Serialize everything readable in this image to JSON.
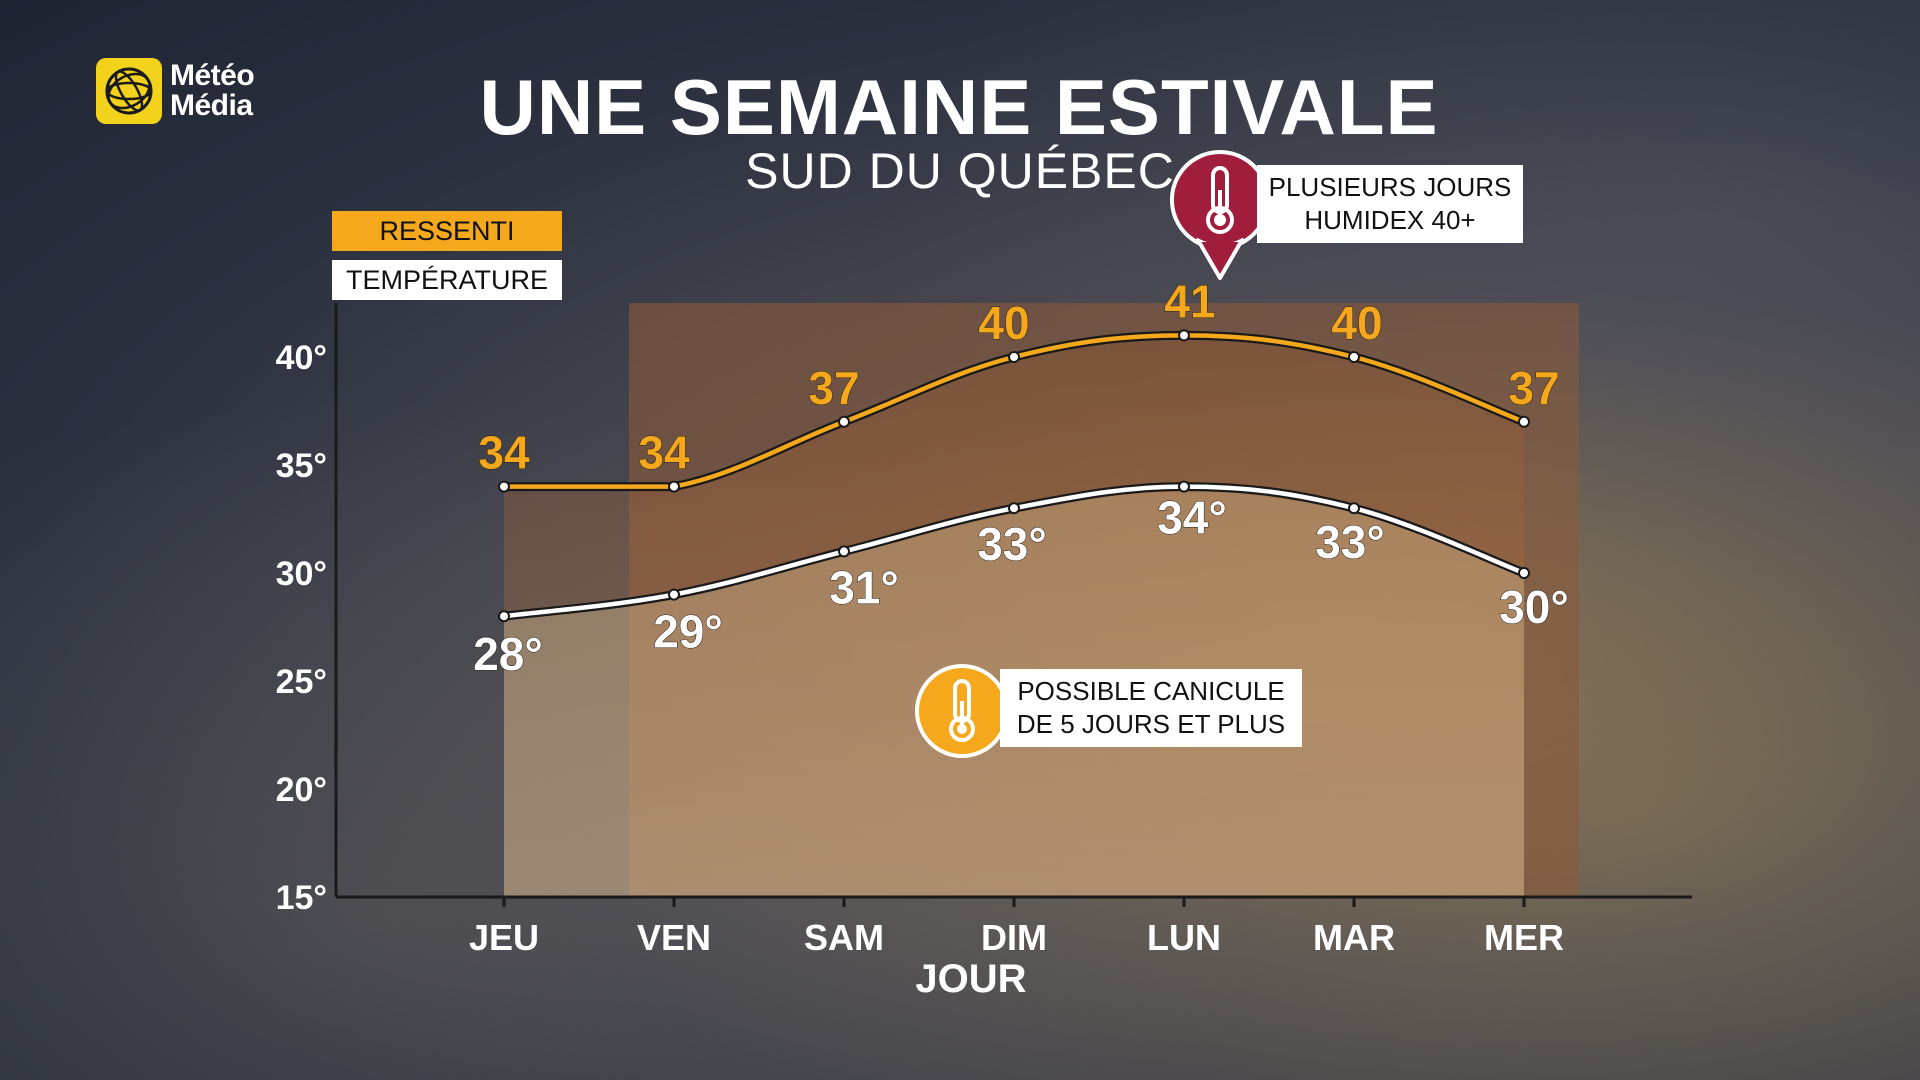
{
  "brand": {
    "line1": "Météo",
    "line2": "Média",
    "icon": "globe-icon"
  },
  "title": "UNE SEMAINE ESTIVALE",
  "subtitle": "SUD DU QUÉBEC",
  "legend": {
    "felt": "RESSENTI",
    "temperature": "TEMPÉRATURE"
  },
  "callouts": {
    "humidex": {
      "line1": "PLUSIEURS JOURS",
      "line2": "HUMIDEX 40+",
      "icon": "thermometer-icon"
    },
    "heatwave": {
      "line1": "POSSIBLE CANICULE",
      "line2": "DE 5 JOURS ET PLUS",
      "icon": "thermometer-icon"
    }
  },
  "colors": {
    "felt": "#f5a81c",
    "temperature": "#ffffff",
    "humidex_pin": "#a01d3c",
    "heat_badge": "#f5a81c"
  },
  "chart_data": {
    "type": "line",
    "title": "UNE SEMAINE ESTIVALE",
    "subtitle": "SUD DU QUÉBEC",
    "xlabel": "JOUR",
    "ylabel": "",
    "categories": [
      "JEU",
      "VEN",
      "SAM",
      "DIM",
      "LUN",
      "MAR",
      "MER"
    ],
    "ylim": [
      15,
      42.5
    ],
    "yticks": [
      15,
      20,
      25,
      30,
      35,
      40
    ],
    "ytick_labels": [
      "15°",
      "20°",
      "25°",
      "30°",
      "35°",
      "40°"
    ],
    "series": [
      {
        "name": "RESSENTI",
        "values": [
          34,
          34,
          37,
          40,
          41,
          40,
          37
        ],
        "labels": [
          "34",
          "34",
          "37",
          "40",
          "41",
          "40",
          "37"
        ]
      },
      {
        "name": "TEMPÉRATURE",
        "values": [
          28,
          29,
          31,
          33,
          34,
          33,
          30
        ],
        "labels": [
          "28°",
          "29°",
          "31°",
          "33°",
          "34°",
          "33°",
          "30°"
        ]
      }
    ],
    "highlight_range": [
      "VEN",
      "MER"
    ],
    "legend": "top-left",
    "grid": false
  }
}
